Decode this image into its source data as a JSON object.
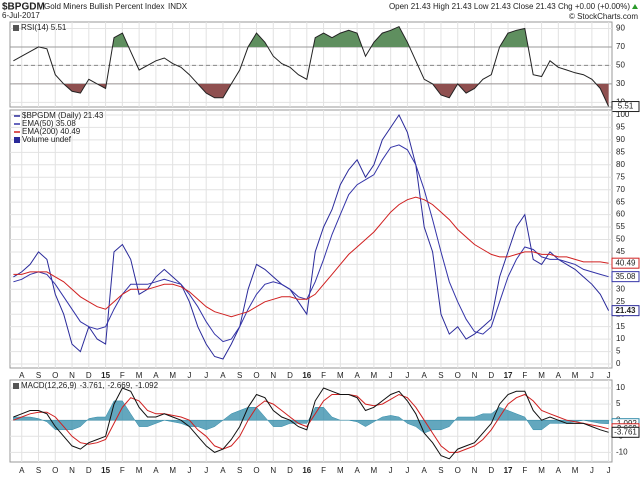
{
  "header": {
    "symbol": "$BPGDM",
    "name": "Gold Miners Bullish Percent Index",
    "exchange": "INDX",
    "date": "6-Jul-2017",
    "quote": "Open 21.43  High 21.43  Low 21.43  Close 21.43  Chg +0.00 (+0.00%)",
    "credit": "© StockCharts.com"
  },
  "chart_data": [
    {
      "type": "line",
      "title": "RSI(14) 5.51",
      "x": [
        -0.5,
        0,
        0.5,
        1,
        1.5,
        2,
        2.5,
        3,
        3.5,
        4,
        4.5,
        5,
        5.5,
        6,
        6.5,
        7,
        7.5,
        8,
        8.5,
        9,
        9.5,
        10,
        10.5,
        11,
        11.5,
        12,
        12.5,
        13,
        13.5,
        14,
        14.5,
        15,
        15.5,
        16,
        16.5,
        17,
        17.5,
        18,
        18.5,
        19,
        19.5,
        20,
        20.5,
        21,
        21.5,
        22,
        22.5,
        23,
        23.5,
        24,
        24.5,
        25,
        25.5,
        26,
        26.5,
        27,
        27.5,
        28,
        28.5,
        29,
        29.5,
        30,
        30.5,
        31,
        31.5,
        32,
        32.5,
        33,
        33.5,
        34,
        34.5,
        35
      ],
      "series": [
        {
          "color": "#222222",
          "values": [
            55,
            60,
            65,
            70,
            68,
            40,
            30,
            22,
            20,
            35,
            30,
            25,
            80,
            85,
            65,
            45,
            50,
            55,
            58,
            52,
            48,
            40,
            30,
            20,
            15,
            15,
            30,
            45,
            70,
            85,
            75,
            60,
            52,
            48,
            40,
            35,
            80,
            85,
            80,
            85,
            88,
            85,
            60,
            75,
            85,
            88,
            92,
            75,
            55,
            35,
            30,
            18,
            15,
            30,
            20,
            25,
            35,
            40,
            70,
            85,
            88,
            90,
            40,
            38,
            55,
            48,
            45,
            42,
            40,
            35,
            25,
            5.51
          ]
        }
      ],
      "xlim": [
        -0.7,
        35.2
      ],
      "ylim": [
        5,
        97
      ],
      "yticks": [
        10,
        30,
        50,
        70,
        90
      ],
      "fill_above": 70,
      "fill_below": 30,
      "fill_above_color": "#5f8f5f",
      "fill_below_color": "#8f5050",
      "midline": 50
    },
    {
      "type": "line",
      "x": [
        -0.5,
        0,
        0.5,
        1,
        1.5,
        2,
        2.5,
        3,
        3.5,
        4,
        4.5,
        5,
        5.5,
        6,
        6.5,
        7,
        7.5,
        8,
        8.5,
        9,
        9.5,
        10,
        10.5,
        11,
        11.5,
        12,
        12.5,
        13,
        13.5,
        14,
        14.5,
        15,
        15.5,
        16,
        16.5,
        17,
        17.5,
        18,
        18.5,
        19,
        19.5,
        20,
        20.5,
        21,
        21.5,
        22,
        22.5,
        23,
        23.5,
        24,
        24.5,
        25,
        25.5,
        26,
        26.5,
        27,
        27.5,
        28,
        28.5,
        29,
        29.5,
        30,
        30.5,
        31,
        31.5,
        32,
        32.5,
        33,
        33.5,
        34,
        34.5,
        35
      ],
      "series": [
        {
          "name": "$BPGDM (Daily) 21.43",
          "color": "#2a2a9a",
          "values": [
            35,
            37,
            40,
            45,
            42,
            28,
            20,
            8,
            5,
            15,
            10,
            8,
            45,
            48,
            42,
            28,
            30,
            35,
            38,
            35,
            32,
            25,
            15,
            8,
            3,
            2,
            8,
            15,
            30,
            40,
            38,
            35,
            32,
            30,
            25,
            20,
            45,
            55,
            62,
            72,
            78,
            82,
            75,
            80,
            90,
            95,
            100,
            93,
            80,
            55,
            45,
            20,
            12,
            15,
            10,
            12,
            15,
            18,
            35,
            45,
            55,
            60,
            42,
            40,
            45,
            42,
            40,
            38,
            35,
            32,
            28,
            21.43
          ]
        },
        {
          "name": "EMA(50) 35.08",
          "color": "#3434a8",
          "values": [
            33,
            34,
            36,
            37,
            36,
            32,
            27,
            22,
            17,
            15,
            14,
            15,
            22,
            28,
            32,
            32,
            32,
            33,
            34,
            33,
            32,
            28,
            23,
            17,
            12,
            9,
            10,
            15,
            22,
            28,
            32,
            33,
            32,
            30,
            27,
            26,
            33,
            42,
            52,
            60,
            68,
            72,
            74,
            76,
            82,
            87,
            88,
            86,
            80,
            70,
            58,
            45,
            33,
            25,
            18,
            13,
            12,
            15,
            25,
            35,
            42,
            47,
            46,
            43,
            42,
            42,
            41,
            40,
            38,
            37,
            36,
            35.08
          ]
        },
        {
          "name": "EMA(200) 40.49",
          "color": "#d02020",
          "values": [
            36,
            36,
            37,
            37,
            37,
            35,
            33,
            30,
            27,
            25,
            23,
            22,
            25,
            28,
            30,
            30,
            30,
            31,
            32,
            32,
            31,
            29,
            26,
            23,
            21,
            20,
            19,
            20,
            21,
            23,
            25,
            26,
            27,
            27,
            26,
            26,
            28,
            32,
            36,
            40,
            44,
            47,
            50,
            53,
            57,
            61,
            64,
            66,
            67,
            66,
            64,
            61,
            58,
            54,
            51,
            48,
            46,
            44,
            43,
            43,
            44,
            45,
            45,
            44,
            44,
            43,
            43,
            42,
            41,
            41,
            41,
            40.49
          ]
        }
      ],
      "legend_extra": "Volume undef",
      "xlim": [
        -0.7,
        35.2
      ],
      "ylim": [
        -1.6,
        102
      ],
      "yticks": [
        0,
        5,
        10,
        15,
        20,
        25,
        30,
        35,
        40,
        45,
        50,
        55,
        60,
        65,
        70,
        75,
        80,
        85,
        90,
        95,
        100
      ],
      "xticks": [
        {
          "value": 0,
          "label": "A"
        },
        {
          "value": 1,
          "label": "S"
        },
        {
          "value": 2,
          "label": "O"
        },
        {
          "value": 3,
          "label": "N"
        },
        {
          "value": 4,
          "label": "D"
        },
        {
          "value": 5,
          "label": "15"
        },
        {
          "value": 6,
          "label": "F"
        },
        {
          "value": 7,
          "label": "M"
        },
        {
          "value": 8,
          "label": "A"
        },
        {
          "value": 9,
          "label": "M"
        },
        {
          "value": 10,
          "label": "J"
        },
        {
          "value": 11,
          "label": "J"
        },
        {
          "value": 12,
          "label": "A"
        },
        {
          "value": 13,
          "label": "S"
        },
        {
          "value": 14,
          "label": "O"
        },
        {
          "value": 15,
          "label": "N"
        },
        {
          "value": 16,
          "label": "D"
        },
        {
          "value": 17,
          "label": "16"
        },
        {
          "value": 18,
          "label": "F"
        },
        {
          "value": 19,
          "label": "M"
        },
        {
          "value": 20,
          "label": "A"
        },
        {
          "value": 21,
          "label": "M"
        },
        {
          "value": 22,
          "label": "J"
        },
        {
          "value": 23,
          "label": "J"
        },
        {
          "value": 24,
          "label": "A"
        },
        {
          "value": 25,
          "label": "S"
        },
        {
          "value": 26,
          "label": "O"
        },
        {
          "value": 27,
          "label": "N"
        },
        {
          "value": 28,
          "label": "D"
        },
        {
          "value": 29,
          "label": "17"
        },
        {
          "value": 30,
          "label": "F"
        },
        {
          "value": 31,
          "label": "M"
        },
        {
          "value": 32,
          "label": "A"
        },
        {
          "value": 33,
          "label": "M"
        },
        {
          "value": 34,
          "label": "J"
        },
        {
          "value": 35,
          "label": "J"
        }
      ]
    },
    {
      "type": "line",
      "title": "MACD(12,26,9)",
      "legend_values": [
        "-3.761,",
        "-2.669,",
        "-1.092"
      ],
      "x": [
        -0.5,
        0,
        0.5,
        1,
        1.5,
        2,
        2.5,
        3,
        3.5,
        4,
        4.5,
        5,
        5.5,
        6,
        6.5,
        7,
        7.5,
        8,
        8.5,
        9,
        9.5,
        10,
        10.5,
        11,
        11.5,
        12,
        12.5,
        13,
        13.5,
        14,
        14.5,
        15,
        15.5,
        16,
        16.5,
        17,
        17.5,
        18,
        18.5,
        19,
        19.5,
        20,
        20.5,
        21,
        21.5,
        22,
        22.5,
        23,
        23.5,
        24,
        24.5,
        25,
        25.5,
        26,
        26.5,
        27,
        27.5,
        28,
        28.5,
        29,
        29.5,
        30,
        30.5,
        31,
        31.5,
        32,
        32.5,
        33,
        33.5,
        34,
        34.5,
        35
      ],
      "series": [
        {
          "color": "#2f8aa8",
          "style": "area",
          "values": [
            1,
            1,
            1,
            0.5,
            -0.5,
            -3,
            -3,
            -3,
            -2,
            0.5,
            1,
            1,
            6,
            6,
            2,
            -2,
            -2,
            -1,
            0,
            -0.5,
            -1,
            -2,
            -2,
            -3,
            -2,
            0,
            2,
            3,
            4,
            4,
            1,
            -2,
            -2,
            -1,
            -1,
            -1,
            4,
            4,
            1,
            0,
            0,
            -0.5,
            -2,
            -0.5,
            1,
            1.5,
            1,
            -1,
            -2,
            -4,
            -3,
            -3,
            -2,
            1,
            1,
            1,
            2,
            2,
            4,
            3,
            2,
            1,
            -3,
            -3,
            -1,
            -1,
            -1,
            -0.5,
            0,
            -0.5,
            -1,
            -1.092
          ]
        },
        {
          "color": "#d02020",
          "values": [
            0,
            1,
            2,
            2.5,
            2.5,
            1,
            -2,
            -5,
            -7,
            -7.5,
            -7,
            -6,
            -1,
            4,
            7,
            6,
            3,
            2,
            2,
            1.5,
            1,
            0,
            -3,
            -5,
            -8,
            -9,
            -8,
            -5,
            0,
            4,
            6,
            5,
            3,
            1,
            -1,
            -2,
            2,
            6,
            8,
            8,
            8,
            7.5,
            5,
            4.5,
            5,
            6.5,
            8,
            7,
            4,
            0,
            -4,
            -8,
            -10,
            -10,
            -9,
            -8,
            -6,
            -3,
            1,
            5,
            7,
            8,
            6,
            3,
            2,
            1,
            0,
            -0.5,
            -1,
            -1.5,
            -2,
            -2.669
          ]
        },
        {
          "color": "#111111",
          "values": [
            1,
            2,
            3,
            3,
            2,
            -2,
            -5,
            -8,
            -9,
            -7,
            -6,
            -5,
            5,
            10,
            9,
            4,
            1,
            1,
            2,
            1,
            0,
            -2,
            -5,
            -8,
            -10,
            -9,
            -6,
            -2,
            4,
            8,
            7,
            3,
            1,
            0,
            -2,
            -3,
            6,
            10,
            9,
            8,
            8,
            7,
            3,
            4,
            6,
            8,
            9,
            6,
            2,
            -4,
            -7,
            -11,
            -12,
            -9,
            -8,
            -7,
            -4,
            -1,
            5,
            8,
            9,
            9,
            3,
            0,
            1,
            0,
            -1,
            -1,
            -1,
            -2,
            -3,
            -3.761
          ]
        }
      ],
      "xlim": [
        -0.7,
        35.2
      ],
      "ylim": [
        -13,
        12.5
      ],
      "yticks": [
        -10,
        -5,
        0,
        5,
        10
      ],
      "xticks": [
        {
          "value": 0,
          "label": "A"
        },
        {
          "value": 1,
          "label": "S"
        },
        {
          "value": 2,
          "label": "O"
        },
        {
          "value": 3,
          "label": "N"
        },
        {
          "value": 4,
          "label": "D"
        },
        {
          "value": 5,
          "label": "15"
        },
        {
          "value": 6,
          "label": "F"
        },
        {
          "value": 7,
          "label": "M"
        },
        {
          "value": 8,
          "label": "A"
        },
        {
          "value": 9,
          "label": "M"
        },
        {
          "value": 10,
          "label": "J"
        },
        {
          "value": 11,
          "label": "J"
        },
        {
          "value": 12,
          "label": "A"
        },
        {
          "value": 13,
          "label": "S"
        },
        {
          "value": 14,
          "label": "O"
        },
        {
          "value": 15,
          "label": "N"
        },
        {
          "value": 16,
          "label": "D"
        },
        {
          "value": 17,
          "label": "16"
        },
        {
          "value": 18,
          "label": "F"
        },
        {
          "value": 19,
          "label": "M"
        },
        {
          "value": 20,
          "label": "A"
        },
        {
          "value": 21,
          "label": "M"
        },
        {
          "value": 22,
          "label": "J"
        },
        {
          "value": 23,
          "label": "J"
        },
        {
          "value": 24,
          "label": "A"
        },
        {
          "value": 25,
          "label": "S"
        },
        {
          "value": 26,
          "label": "O"
        },
        {
          "value": 27,
          "label": "N"
        },
        {
          "value": 28,
          "label": "D"
        },
        {
          "value": 29,
          "label": "17"
        },
        {
          "value": 30,
          "label": "F"
        },
        {
          "value": 31,
          "label": "M"
        },
        {
          "value": 32,
          "label": "A"
        },
        {
          "value": 33,
          "label": "M"
        },
        {
          "value": 34,
          "label": "J"
        },
        {
          "value": 35,
          "label": "J"
        }
      ]
    }
  ]
}
